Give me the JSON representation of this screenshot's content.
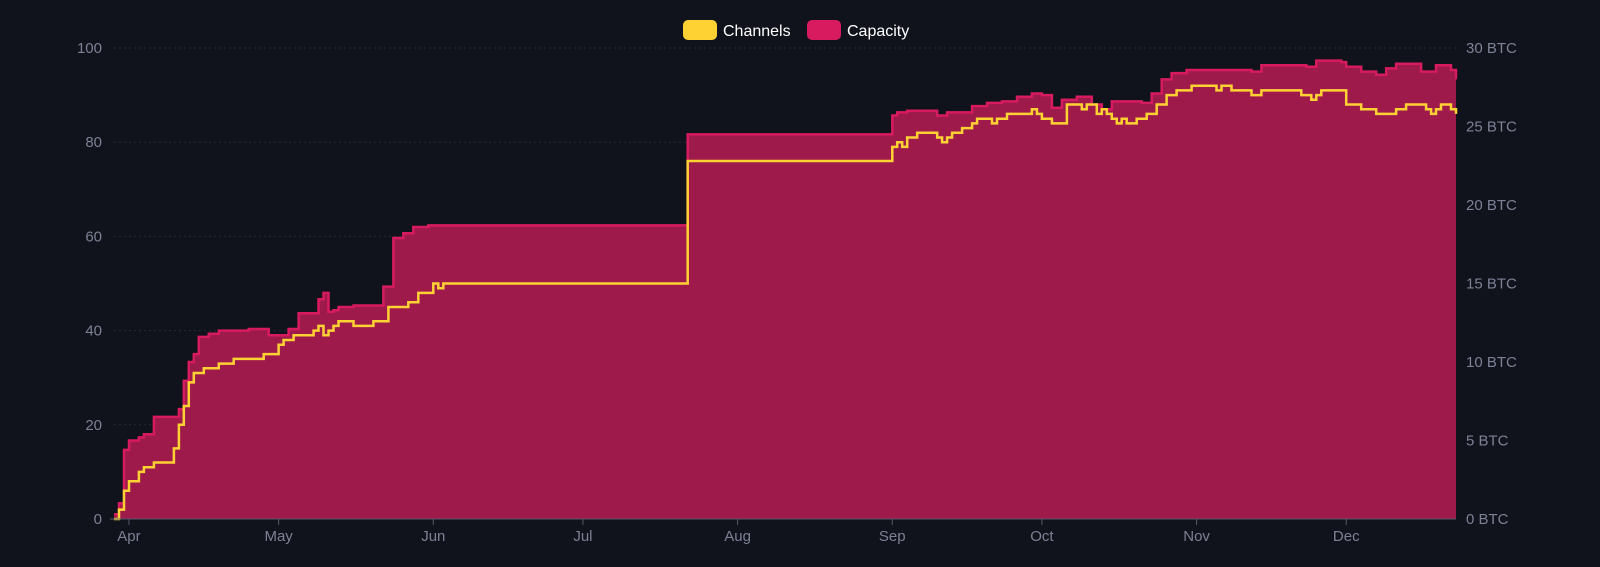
{
  "colors": {
    "background": "#11131c",
    "grid": "#262a38",
    "axis": "#555a6b",
    "tick_text": "#7d8196",
    "channels": "#ffd234",
    "capacity_line": "#d81b5f",
    "capacity_fill": "#9e1a4a"
  },
  "chart_data": {
    "type": "area",
    "x_ticks": [
      "Apr",
      "May",
      "Jun",
      "Jul",
      "Aug",
      "Sep",
      "Oct",
      "Nov",
      "Dec"
    ],
    "y_left_ticks": [
      "0",
      "20",
      "40",
      "60",
      "80",
      "100"
    ],
    "y_right_ticks": [
      "0 BTC",
      "5 BTC",
      "10 BTC",
      "15 BTC",
      "20 BTC",
      "25 BTC",
      "30 BTC"
    ],
    "y_left_range": [
      0,
      100
    ],
    "y_right_range": [
      0,
      30
    ],
    "y_right_unit": "BTC",
    "grid": true,
    "legend_position": "top-center",
    "legend": [
      "Channels",
      "Capacity"
    ],
    "series": [
      {
        "name": "Channels",
        "axis": "left",
        "step": true,
        "points": [
          [
            "2023-03-29",
            0
          ],
          [
            "2023-03-30",
            2
          ],
          [
            "2023-03-31",
            6
          ],
          [
            "2023-04-01",
            8
          ],
          [
            "2023-04-03",
            10
          ],
          [
            "2023-04-04",
            11
          ],
          [
            "2023-04-06",
            12
          ],
          [
            "2023-04-10",
            15
          ],
          [
            "2023-04-11",
            20
          ],
          [
            "2023-04-12",
            24
          ],
          [
            "2023-04-13",
            29
          ],
          [
            "2023-04-14",
            31
          ],
          [
            "2023-04-16",
            32
          ],
          [
            "2023-04-19",
            33
          ],
          [
            "2023-04-22",
            34
          ],
          [
            "2023-04-28",
            35
          ],
          [
            "2023-05-01",
            37
          ],
          [
            "2023-05-02",
            38
          ],
          [
            "2023-05-04",
            39
          ],
          [
            "2023-05-08",
            40
          ],
          [
            "2023-05-09",
            41
          ],
          [
            "2023-05-10",
            39
          ],
          [
            "2023-05-11",
            40
          ],
          [
            "2023-05-12",
            41
          ],
          [
            "2023-05-13",
            42
          ],
          [
            "2023-05-16",
            41
          ],
          [
            "2023-05-20",
            42
          ],
          [
            "2023-05-23",
            45
          ],
          [
            "2023-05-27",
            46
          ],
          [
            "2023-05-29",
            48
          ],
          [
            "2023-06-01",
            50
          ],
          [
            "2023-06-02",
            49
          ],
          [
            "2023-06-03",
            50
          ],
          [
            "2023-07-22",
            76
          ],
          [
            "2023-09-01",
            79
          ],
          [
            "2023-09-02",
            80
          ],
          [
            "2023-09-03",
            79
          ],
          [
            "2023-09-04",
            81
          ],
          [
            "2023-09-06",
            82
          ],
          [
            "2023-09-10",
            81
          ],
          [
            "2023-09-11",
            80
          ],
          [
            "2023-09-12",
            81
          ],
          [
            "2023-09-13",
            82
          ],
          [
            "2023-09-15",
            83
          ],
          [
            "2023-09-17",
            84
          ],
          [
            "2023-09-18",
            85
          ],
          [
            "2023-09-21",
            84
          ],
          [
            "2023-09-22",
            85
          ],
          [
            "2023-09-24",
            86
          ],
          [
            "2023-09-29",
            87
          ],
          [
            "2023-09-30",
            86
          ],
          [
            "2023-10-01",
            85
          ],
          [
            "2023-10-03",
            84
          ],
          [
            "2023-10-06",
            88
          ],
          [
            "2023-10-09",
            87
          ],
          [
            "2023-10-10",
            88
          ],
          [
            "2023-10-12",
            86
          ],
          [
            "2023-10-13",
            87
          ],
          [
            "2023-10-14",
            86
          ],
          [
            "2023-10-15",
            85
          ],
          [
            "2023-10-16",
            84
          ],
          [
            "2023-10-17",
            85
          ],
          [
            "2023-10-18",
            84
          ],
          [
            "2023-10-20",
            85
          ],
          [
            "2023-10-22",
            86
          ],
          [
            "2023-10-24",
            88
          ],
          [
            "2023-10-26",
            90
          ],
          [
            "2023-10-28",
            91
          ],
          [
            "2023-10-31",
            92
          ],
          [
            "2023-11-05",
            91
          ],
          [
            "2023-11-06",
            92
          ],
          [
            "2023-11-08",
            91
          ],
          [
            "2023-11-12",
            90
          ],
          [
            "2023-11-14",
            91
          ],
          [
            "2023-11-22",
            90
          ],
          [
            "2023-11-24",
            89
          ],
          [
            "2023-11-25",
            90
          ],
          [
            "2023-11-26",
            91
          ],
          [
            "2023-12-01",
            88
          ],
          [
            "2023-12-04",
            87
          ],
          [
            "2023-12-07",
            86
          ],
          [
            "2023-12-11",
            87
          ],
          [
            "2023-12-13",
            88
          ],
          [
            "2023-12-17",
            87
          ],
          [
            "2023-12-18",
            86
          ],
          [
            "2023-12-19",
            87
          ],
          [
            "2023-12-20",
            88
          ],
          [
            "2023-12-22",
            87
          ],
          [
            "2023-12-23",
            86
          ]
        ]
      },
      {
        "name": "Capacity",
        "axis": "right",
        "step": true,
        "points": [
          [
            "2023-03-29",
            0.3
          ],
          [
            "2023-03-30",
            1.0
          ],
          [
            "2023-03-31",
            4.4
          ],
          [
            "2023-04-01",
            5.0
          ],
          [
            "2023-04-03",
            5.2
          ],
          [
            "2023-04-04",
            5.4
          ],
          [
            "2023-04-06",
            6.5
          ],
          [
            "2023-04-11",
            7.0
          ],
          [
            "2023-04-12",
            8.8
          ],
          [
            "2023-04-13",
            10.0
          ],
          [
            "2023-04-14",
            10.5
          ],
          [
            "2023-04-15",
            11.6
          ],
          [
            "2023-04-17",
            11.8
          ],
          [
            "2023-04-19",
            12.0
          ],
          [
            "2023-04-25",
            12.1
          ],
          [
            "2023-04-29",
            11.7
          ],
          [
            "2023-05-03",
            12.1
          ],
          [
            "2023-05-05",
            13.1
          ],
          [
            "2023-05-09",
            14.0
          ],
          [
            "2023-05-10",
            14.4
          ],
          [
            "2023-05-11",
            13.2
          ],
          [
            "2023-05-12",
            13.3
          ],
          [
            "2023-05-13",
            13.5
          ],
          [
            "2023-05-16",
            13.6
          ],
          [
            "2023-05-22",
            14.8
          ],
          [
            "2023-05-24",
            17.9
          ],
          [
            "2023-05-26",
            18.2
          ],
          [
            "2023-05-28",
            18.6
          ],
          [
            "2023-05-31",
            18.7
          ],
          [
            "2023-07-22",
            24.5
          ],
          [
            "2023-09-01",
            25.7
          ],
          [
            "2023-09-02",
            25.9
          ],
          [
            "2023-09-04",
            26.0
          ],
          [
            "2023-09-10",
            25.7
          ],
          [
            "2023-09-12",
            25.9
          ],
          [
            "2023-09-17",
            26.3
          ],
          [
            "2023-09-20",
            26.5
          ],
          [
            "2023-09-23",
            26.6
          ],
          [
            "2023-09-26",
            26.9
          ],
          [
            "2023-09-29",
            27.1
          ],
          [
            "2023-10-01",
            27.0
          ],
          [
            "2023-10-03",
            26.2
          ],
          [
            "2023-10-05",
            26.7
          ],
          [
            "2023-10-08",
            26.9
          ],
          [
            "2023-10-11",
            26.4
          ],
          [
            "2023-10-13",
            26.1
          ],
          [
            "2023-10-15",
            26.6
          ],
          [
            "2023-10-21",
            26.5
          ],
          [
            "2023-10-23",
            27.1
          ],
          [
            "2023-10-25",
            28.0
          ],
          [
            "2023-10-27",
            28.4
          ],
          [
            "2023-10-30",
            28.6
          ],
          [
            "2023-11-06",
            28.6
          ],
          [
            "2023-11-12",
            28.5
          ],
          [
            "2023-11-14",
            28.9
          ],
          [
            "2023-11-23",
            28.8
          ],
          [
            "2023-11-25",
            29.2
          ],
          [
            "2023-11-30",
            29.1
          ],
          [
            "2023-12-01",
            28.8
          ],
          [
            "2023-12-04",
            28.5
          ],
          [
            "2023-12-07",
            28.3
          ],
          [
            "2023-12-09",
            28.7
          ],
          [
            "2023-12-11",
            29.0
          ],
          [
            "2023-12-16",
            28.5
          ],
          [
            "2023-12-19",
            28.9
          ],
          [
            "2023-12-22",
            28.6
          ],
          [
            "2023-12-23",
            28.0
          ]
        ]
      }
    ]
  }
}
